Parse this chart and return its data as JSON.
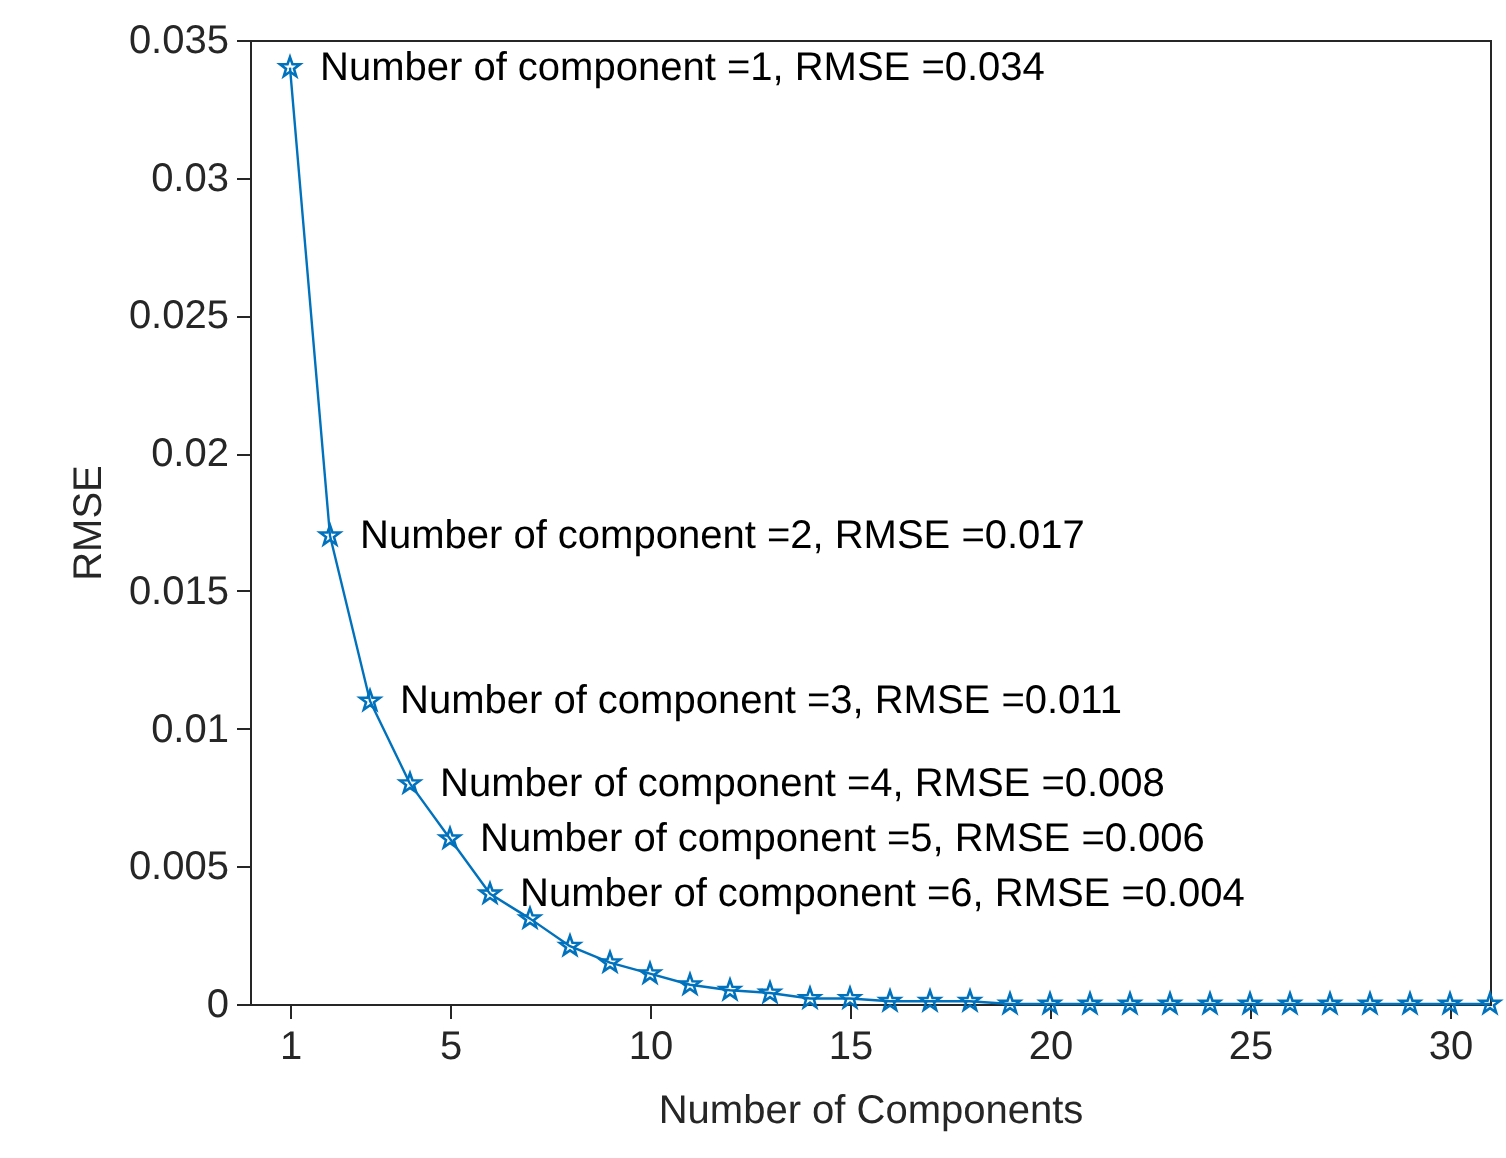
{
  "chart_data": {
    "type": "line",
    "xlabel": "Number of Components",
    "ylabel": "RMSE",
    "x": [
      1,
      2,
      3,
      4,
      5,
      6,
      7,
      8,
      9,
      10,
      11,
      12,
      13,
      14,
      15,
      16,
      17,
      18,
      19,
      20,
      21,
      22,
      23,
      24,
      25,
      26,
      27,
      28,
      29,
      30,
      31
    ],
    "series": [
      {
        "color": "#0072bd",
        "values": [
          0.034,
          0.017,
          0.011,
          0.008,
          0.006,
          0.004,
          0.0031,
          0.0021,
          0.0015,
          0.0011,
          0.0007,
          0.0005,
          0.0004,
          0.0002,
          0.0002,
          0.0001,
          0.0001,
          0.0001,
          0,
          0,
          0,
          0,
          0,
          0,
          0,
          0,
          0,
          0,
          0,
          0,
          0
        ]
      }
    ],
    "xlim": [
      0,
      31
    ],
    "xticks": [
      1,
      5,
      10,
      15,
      20,
      25,
      30
    ],
    "ylim": [
      0,
      0.035
    ],
    "yticks": [
      0,
      0.005,
      0.01,
      0.015,
      0.02,
      0.025,
      0.03,
      0.035
    ],
    "grid": false,
    "legend": false,
    "marker": "star",
    "line_style": "solid",
    "annotations": [
      {
        "text": "Number of component =1,  RMSE =0.034",
        "x": 1,
        "y": 0.034
      },
      {
        "text": "Number of component =2,  RMSE =0.017",
        "x": 2,
        "y": 0.017
      },
      {
        "text": "Number of component =3,  RMSE =0.011",
        "x": 3,
        "y": 0.011
      },
      {
        "text": "Number of component =4,  RMSE =0.008",
        "x": 4,
        "y": 0.008
      },
      {
        "text": "Number of component =5,  RMSE =0.006",
        "x": 5,
        "y": 0.006
      },
      {
        "text": "Number of component =6,  RMSE =0.004",
        "x": 6,
        "y": 0.004
      }
    ]
  }
}
